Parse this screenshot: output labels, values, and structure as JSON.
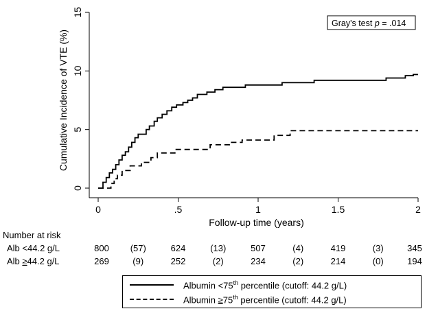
{
  "chart_data": {
    "type": "line",
    "xlabel": "Follow-up time (years)",
    "ylabel": "Cumulative Incidence of VTE (%)",
    "xlim": [
      0,
      2
    ],
    "ylim": [
      0,
      15
    ],
    "x_ticks": [
      0,
      0.5,
      1,
      1.5,
      2
    ],
    "x_tick_labels": [
      "0",
      ".5",
      "1",
      "1.5",
      "2"
    ],
    "y_ticks": [
      0,
      5,
      10,
      15
    ],
    "y_tick_labels": [
      "0",
      "5",
      "10",
      "15"
    ],
    "annotation": {
      "prefix": "Gray's test ",
      "p": "p",
      "suffix": " = .014"
    },
    "grid": false,
    "series": [
      {
        "name": "Albumin <75th percentile (cutoff: 44.2 g/L)",
        "style": "solid",
        "points": [
          [
            0,
            0
          ],
          [
            0.03,
            0
          ],
          [
            0.03,
            0.5
          ],
          [
            0.05,
            0.5
          ],
          [
            0.05,
            0.9
          ],
          [
            0.07,
            0.9
          ],
          [
            0.07,
            1.3
          ],
          [
            0.09,
            1.3
          ],
          [
            0.09,
            1.6
          ],
          [
            0.11,
            1.6
          ],
          [
            0.11,
            2.0
          ],
          [
            0.13,
            2.0
          ],
          [
            0.13,
            2.4
          ],
          [
            0.15,
            2.4
          ],
          [
            0.15,
            2.8
          ],
          [
            0.17,
            2.8
          ],
          [
            0.17,
            3.1
          ],
          [
            0.19,
            3.1
          ],
          [
            0.19,
            3.5
          ],
          [
            0.21,
            3.5
          ],
          [
            0.21,
            3.9
          ],
          [
            0.23,
            3.9
          ],
          [
            0.23,
            4.3
          ],
          [
            0.25,
            4.3
          ],
          [
            0.25,
            4.6
          ],
          [
            0.3,
            4.6
          ],
          [
            0.3,
            5.0
          ],
          [
            0.32,
            5.0
          ],
          [
            0.32,
            5.3
          ],
          [
            0.35,
            5.3
          ],
          [
            0.35,
            5.7
          ],
          [
            0.37,
            5.7
          ],
          [
            0.37,
            6.0
          ],
          [
            0.4,
            6.0
          ],
          [
            0.4,
            6.3
          ],
          [
            0.43,
            6.3
          ],
          [
            0.43,
            6.6
          ],
          [
            0.46,
            6.6
          ],
          [
            0.46,
            6.9
          ],
          [
            0.49,
            6.9
          ],
          [
            0.49,
            7.1
          ],
          [
            0.53,
            7.1
          ],
          [
            0.53,
            7.3
          ],
          [
            0.56,
            7.3
          ],
          [
            0.56,
            7.5
          ],
          [
            0.59,
            7.5
          ],
          [
            0.59,
            7.7
          ],
          [
            0.62,
            7.7
          ],
          [
            0.62,
            8.0
          ],
          [
            0.68,
            8.0
          ],
          [
            0.68,
            8.2
          ],
          [
            0.73,
            8.2
          ],
          [
            0.73,
            8.4
          ],
          [
            0.78,
            8.4
          ],
          [
            0.78,
            8.6
          ],
          [
            0.92,
            8.6
          ],
          [
            0.92,
            8.8
          ],
          [
            1.15,
            8.8
          ],
          [
            1.15,
            9.0
          ],
          [
            1.35,
            9.0
          ],
          [
            1.35,
            9.2
          ],
          [
            1.8,
            9.2
          ],
          [
            1.8,
            9.4
          ],
          [
            1.92,
            9.4
          ],
          [
            1.92,
            9.6
          ],
          [
            1.97,
            9.6
          ],
          [
            1.97,
            9.7
          ],
          [
            2.0,
            9.7
          ]
        ]
      },
      {
        "name": "Albumin ≥75th percentile (cutoff: 44.2 g/L)",
        "style": "dashed",
        "points": [
          [
            0,
            0
          ],
          [
            0.08,
            0
          ],
          [
            0.08,
            0.4
          ],
          [
            0.1,
            0.4
          ],
          [
            0.1,
            0.8
          ],
          [
            0.12,
            0.8
          ],
          [
            0.12,
            1.1
          ],
          [
            0.15,
            1.1
          ],
          [
            0.15,
            1.5
          ],
          [
            0.2,
            1.5
          ],
          [
            0.2,
            1.9
          ],
          [
            0.27,
            1.9
          ],
          [
            0.27,
            2.2
          ],
          [
            0.33,
            2.2
          ],
          [
            0.33,
            2.6
          ],
          [
            0.37,
            2.6
          ],
          [
            0.37,
            3.0
          ],
          [
            0.48,
            3.0
          ],
          [
            0.48,
            3.3
          ],
          [
            0.7,
            3.3
          ],
          [
            0.7,
            3.7
          ],
          [
            0.82,
            3.7
          ],
          [
            0.82,
            3.9
          ],
          [
            0.9,
            3.9
          ],
          [
            0.9,
            4.1
          ],
          [
            1.1,
            4.1
          ],
          [
            1.1,
            4.5
          ],
          [
            1.2,
            4.5
          ],
          [
            1.2,
            4.9
          ],
          [
            2.0,
            4.9
          ]
        ]
      }
    ]
  },
  "risk_table": {
    "title": "Number at risk",
    "rows": [
      {
        "label": "Alb <44.2 g/L",
        "values": [
          "800",
          "(57)",
          "624",
          "(13)",
          "507",
          "(4)",
          "419",
          "(3)",
          "345"
        ]
      },
      {
        "label_prefix": "Alb ",
        "label_sym": "≥",
        "label_suffix": "44.2  g/L",
        "values": [
          "269",
          "(9)",
          "252",
          "(2)",
          "234",
          "(2)",
          "214",
          "(0)",
          "194"
        ]
      }
    ]
  },
  "legend": {
    "items": [
      {
        "prefix": "Albumin <75",
        "sup": "th",
        "suffix": " percentile (cutoff: 44.2 g/L)",
        "style": "solid"
      },
      {
        "prefix": "Albumin ",
        "sym": "≥",
        "mid": "75",
        "sup": "th",
        "suffix": " percentile (cutoff: 44.2 g/L)",
        "style": "dashed"
      }
    ]
  }
}
